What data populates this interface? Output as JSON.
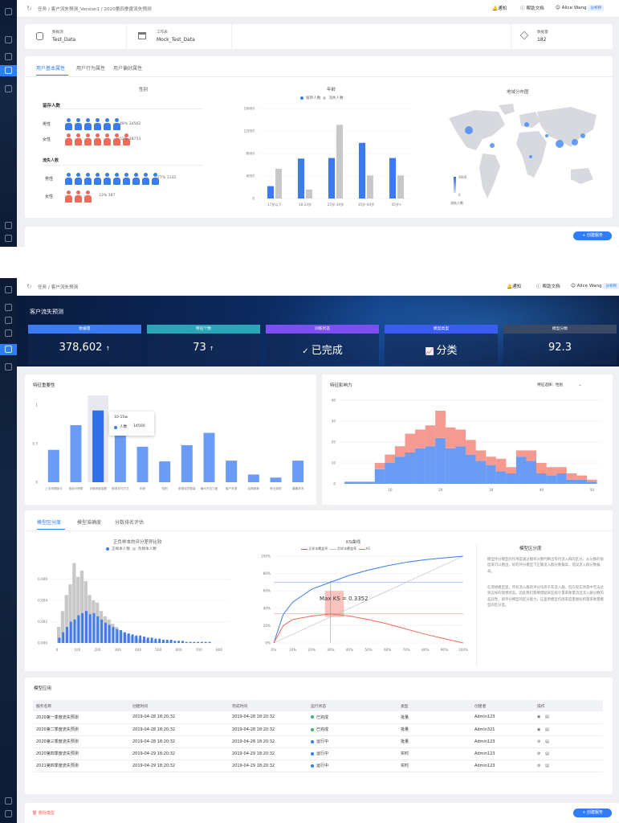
{
  "shared": {
    "notify": "通知",
    "help": "帮助文档",
    "user": "Alice Wang",
    "user_badge": "分析师",
    "create_task": "+ 创建服务"
  },
  "screen1": {
    "breadcrumb": "任务 / 客户流失预测_Version1 / 2020第四季度流失预测",
    "info": [
      {
        "label": "数据源",
        "value": "Test_Data",
        "icon": "database-icon"
      },
      {
        "label": "工作表",
        "value": "Mock_Test_Data",
        "icon": "table-icon"
      },
      {
        "label": "数据量",
        "value": "182",
        "icon": "layers-icon"
      }
    ],
    "tabs": [
      "用户基本属性",
      "用户行为属性",
      "用户偏好属性"
    ],
    "gender": {
      "title": "性别",
      "retained_label": "留存人数",
      "lost_label": "流失人数",
      "male": "男性",
      "female": "女性",
      "retained_male": "48%  34562",
      "retained_female": "52%  38753",
      "lost_male": "77%  1132",
      "lost_female": "23%  387"
    },
    "age": {
      "title": "年龄",
      "legend": [
        "留存人数",
        "流失人数"
      ],
      "colors": [
        "#3a7cf0",
        "#c8c8c8"
      ]
    },
    "map": {
      "title": "地域分布图",
      "scale_max": "3000",
      "scale_min": "0",
      "legend": "流失人数"
    }
  },
  "screen2": {
    "breadcrumb": "任务 / 客户流失预测",
    "banner_title": "客户流失预测",
    "kpis": [
      {
        "label": "数据量",
        "value": "378,602",
        "suffix": "↑",
        "color": "#3a7cf0"
      },
      {
        "label": "特征个数",
        "value": "73",
        "suffix": "↑",
        "color": "#2aa6b8"
      },
      {
        "label": "训练状态",
        "value": "已完成",
        "suffix": "",
        "color": "#7b4ff0"
      },
      {
        "label": "模型类型",
        "value": "分类",
        "suffix": "",
        "color": "#3a5cf0"
      },
      {
        "label": "模型分数",
        "value": "92.3",
        "suffix": "",
        "color": "#3a4a66"
      }
    ],
    "importance": {
      "title": "特征重要性",
      "tooltip_range": "10-15w",
      "tooltip_label": "人数",
      "tooltip_value": "14500"
    },
    "influence": {
      "title": "特征影响力",
      "select_label": "特征选择：性别"
    },
    "model_tabs": [
      "模型区分度",
      "模型准确度",
      "分数排名评估"
    ],
    "score_chart": {
      "title": "正负样本的评分差异比较",
      "legend": [
        "正样本人数",
        "负样本人数"
      ]
    },
    "ks_chart": {
      "title": "KS曲线",
      "legend": [
        "正样本覆盖率",
        "负样本覆盖率",
        "KS"
      ],
      "annotation": "Max KS = 0.3352"
    },
    "explain": {
      "title": "模型区分度",
      "p1": "模型评分模型的作用是通过概率分数判断出等待流入群的区分。从分数的角度来可以看出，好的评分模型下正确流入群分数偏高，错误流入群分数偏高。",
      "p2": "在理想模型里，所有流入群的评分均高于非流入群，但在现实场景中无法达到这样的理想状态。因此我们需要借助某些统计量来衡量流出流入群分数的差异性，即评分模型的区分能力，这里用模型作图来度量图标和量来衡量模型的区分度。"
    },
    "table": {
      "title": "模型应用",
      "headers": [
        "服务名称",
        "创建时间",
        "完成时间",
        "运行状态",
        "类型",
        "创建者",
        "操作"
      ],
      "rows": [
        {
          "name": "2020第一季度流失预测",
          "created": "2019-04-28 18:20:32",
          "finished": "2019-04-28 18:20:32",
          "status": "已完成",
          "type": "批量",
          "owner": "Admin123"
        },
        {
          "name": "2020第二季度流失预测",
          "created": "2019-04-28 18:20:32",
          "finished": "2019-04-28 18:20:32",
          "status": "已完成",
          "type": "批量",
          "owner": "Admin321"
        },
        {
          "name": "2020第三季度流失预测",
          "created": "2019-04-28 18:20:32",
          "finished": "2019-04-28 18:20:32",
          "status": "运行中",
          "type": "批量",
          "owner": "Admin123"
        },
        {
          "name": "2020第四季度流失预测",
          "created": "2019-04-29 18:20:32",
          "finished": "2019-04-29 18:20:32",
          "status": "运行中",
          "type": "实时",
          "owner": "Admin123"
        },
        {
          "name": "2021第四季度流失预测",
          "created": "2019-04-29 18:20:32",
          "finished": "2019-04-29 18:20:32",
          "status": "运行中",
          "type": "实时",
          "owner": "Admin123"
        }
      ]
    },
    "delete_label": "删除模型"
  },
  "chart_data": [
    {
      "type": "bar",
      "title": "年龄",
      "categories": [
        "17岁以下",
        "18-24岁",
        "25岁-34岁",
        "35岁-44岁",
        "45岁+"
      ],
      "series": [
        {
          "name": "留存人数",
          "values": [
            2200,
            7100,
            7200,
            9900,
            7200
          ]
        },
        {
          "name": "流失人数",
          "values": [
            5300,
            1600,
            13100,
            4100,
            4100
          ]
        }
      ],
      "ylim": [
        0,
        16000
      ],
      "yticks": [
        0,
        4000,
        8000,
        12000,
        16000
      ]
    },
    {
      "type": "bar",
      "title": "特征重要性",
      "categories": [
        "上次消费距今",
        "信用卡积数",
        "近期消费金额",
        "常用支付方式",
        "年龄",
        "性别",
        "家庭成员数量",
        "最大开支力度",
        "客户来源",
        "后期推荐",
        "职业类型",
        "婚姻状况"
      ],
      "values": [
        0.42,
        0.74,
        0.93,
        0.66,
        0.46,
        0.27,
        0.48,
        0.64,
        0.28,
        0.1,
        0.06,
        0.28
      ],
      "ylim": [
        0,
        1
      ],
      "yticks": [
        0,
        0.5,
        1
      ]
    },
    {
      "type": "bar",
      "title": "特征影响力",
      "x": [
        2,
        4,
        6,
        8,
        10,
        12,
        14,
        16,
        18,
        20,
        22,
        24,
        26,
        28,
        30,
        32,
        34,
        36,
        38,
        40,
        42,
        44,
        46,
        48,
        50
      ],
      "series": [
        {
          "name": "blue",
          "values": [
            1,
            1,
            1,
            7,
            10,
            13,
            15,
            17,
            18,
            22,
            17,
            18,
            14,
            11,
            9,
            6,
            5,
            13,
            11,
            5,
            4,
            5,
            2,
            2,
            1
          ]
        },
        {
          "name": "red",
          "values": [
            0,
            0,
            0,
            3,
            4,
            5,
            9,
            9,
            10,
            13,
            10,
            8,
            7,
            5,
            4,
            6,
            3,
            3,
            5,
            5,
            4,
            3,
            3,
            2,
            1
          ]
        }
      ],
      "ylim": [
        0,
        40
      ],
      "yticks": [
        0,
        10,
        20,
        30,
        40
      ],
      "xticks": [
        10,
        20,
        30,
        40,
        50
      ]
    },
    {
      "type": "bar",
      "title": "正负样本的评分差异比较",
      "xticks": [
        0,
        100,
        200,
        300,
        400,
        500,
        600,
        700,
        800
      ],
      "yticks": [
        "0.000",
        "0.002",
        "0.004",
        "0.006"
      ],
      "series": [
        {
          "name": "正样本人数",
          "values": [
            0.0005,
            0.001,
            0.0015,
            0.002,
            0.0022,
            0.0026,
            0.0028,
            0.003,
            0.0027,
            0.0028,
            0.0025,
            0.0022,
            0.0019,
            0.0017,
            0.0015,
            0.0013,
            0.0012,
            0.001,
            0.0009,
            0.0008,
            0.0007,
            0.0007,
            0.0006,
            0.0005,
            0.0005,
            0.0004,
            0.0004,
            0.0003,
            0.0003,
            0.0003,
            0.0002,
            0.0002,
            0.0002,
            0.0001,
            0.0001,
            0.0001,
            0.0001,
            0.0001,
            0.0001,
            0.0001
          ]
        },
        {
          "name": "负样本人数",
          "values": [
            0.0015,
            0.003,
            0.0045,
            0.0055,
            0.0075,
            0.0062,
            0.0068,
            0.0058,
            0.0045,
            0.004,
            0.0038,
            0.003,
            0.0025,
            0.0022,
            0.0018,
            0.0015,
            0.0012,
            0.001,
            0.0008,
            0.0007,
            0.0006,
            0.0004,
            0.0003,
            0.0003,
            0.0002,
            0.0002,
            0.0001,
            0.0001,
            0.0001,
            0.0001,
            0,
            0,
            0,
            0,
            0,
            0,
            0,
            0,
            0,
            0
          ]
        }
      ],
      "ylim": [
        0,
        0.008
      ]
    },
    {
      "type": "line",
      "title": "KS曲线",
      "xticks": [
        "0%",
        "10%",
        "20%",
        "30%",
        "40%",
        "50%",
        "60%",
        "70%",
        "80%",
        "90%",
        "100%"
      ],
      "yticks": [
        "0%",
        "20%",
        "40%",
        "60%",
        "80%",
        "100%"
      ],
      "series": [
        {
          "name": "正样本覆盖率",
          "x": [
            0,
            0.05,
            0.1,
            0.2,
            0.3,
            0.4,
            0.5,
            0.6,
            0.7,
            0.8,
            0.9,
            1
          ],
          "y": [
            0,
            0.33,
            0.47,
            0.62,
            0.7,
            0.78,
            0.84,
            0.89,
            0.93,
            0.96,
            0.98,
            1
          ]
        },
        {
          "name": "负样本覆盖率",
          "x": [
            0,
            1
          ],
          "y": [
            0,
            1
          ]
        },
        {
          "name": "KS",
          "x": [
            0,
            0.05,
            0.1,
            0.2,
            0.3,
            0.4,
            0.5,
            0.6,
            0.7,
            0.8,
            0.9,
            1
          ],
          "y": [
            0,
            0.2,
            0.27,
            0.31,
            0.335,
            0.31,
            0.27,
            0.22,
            0.16,
            0.1,
            0.05,
            0
          ]
        }
      ],
      "ylim": [
        0,
        1
      ],
      "xlim": [
        0,
        1
      ]
    }
  ]
}
